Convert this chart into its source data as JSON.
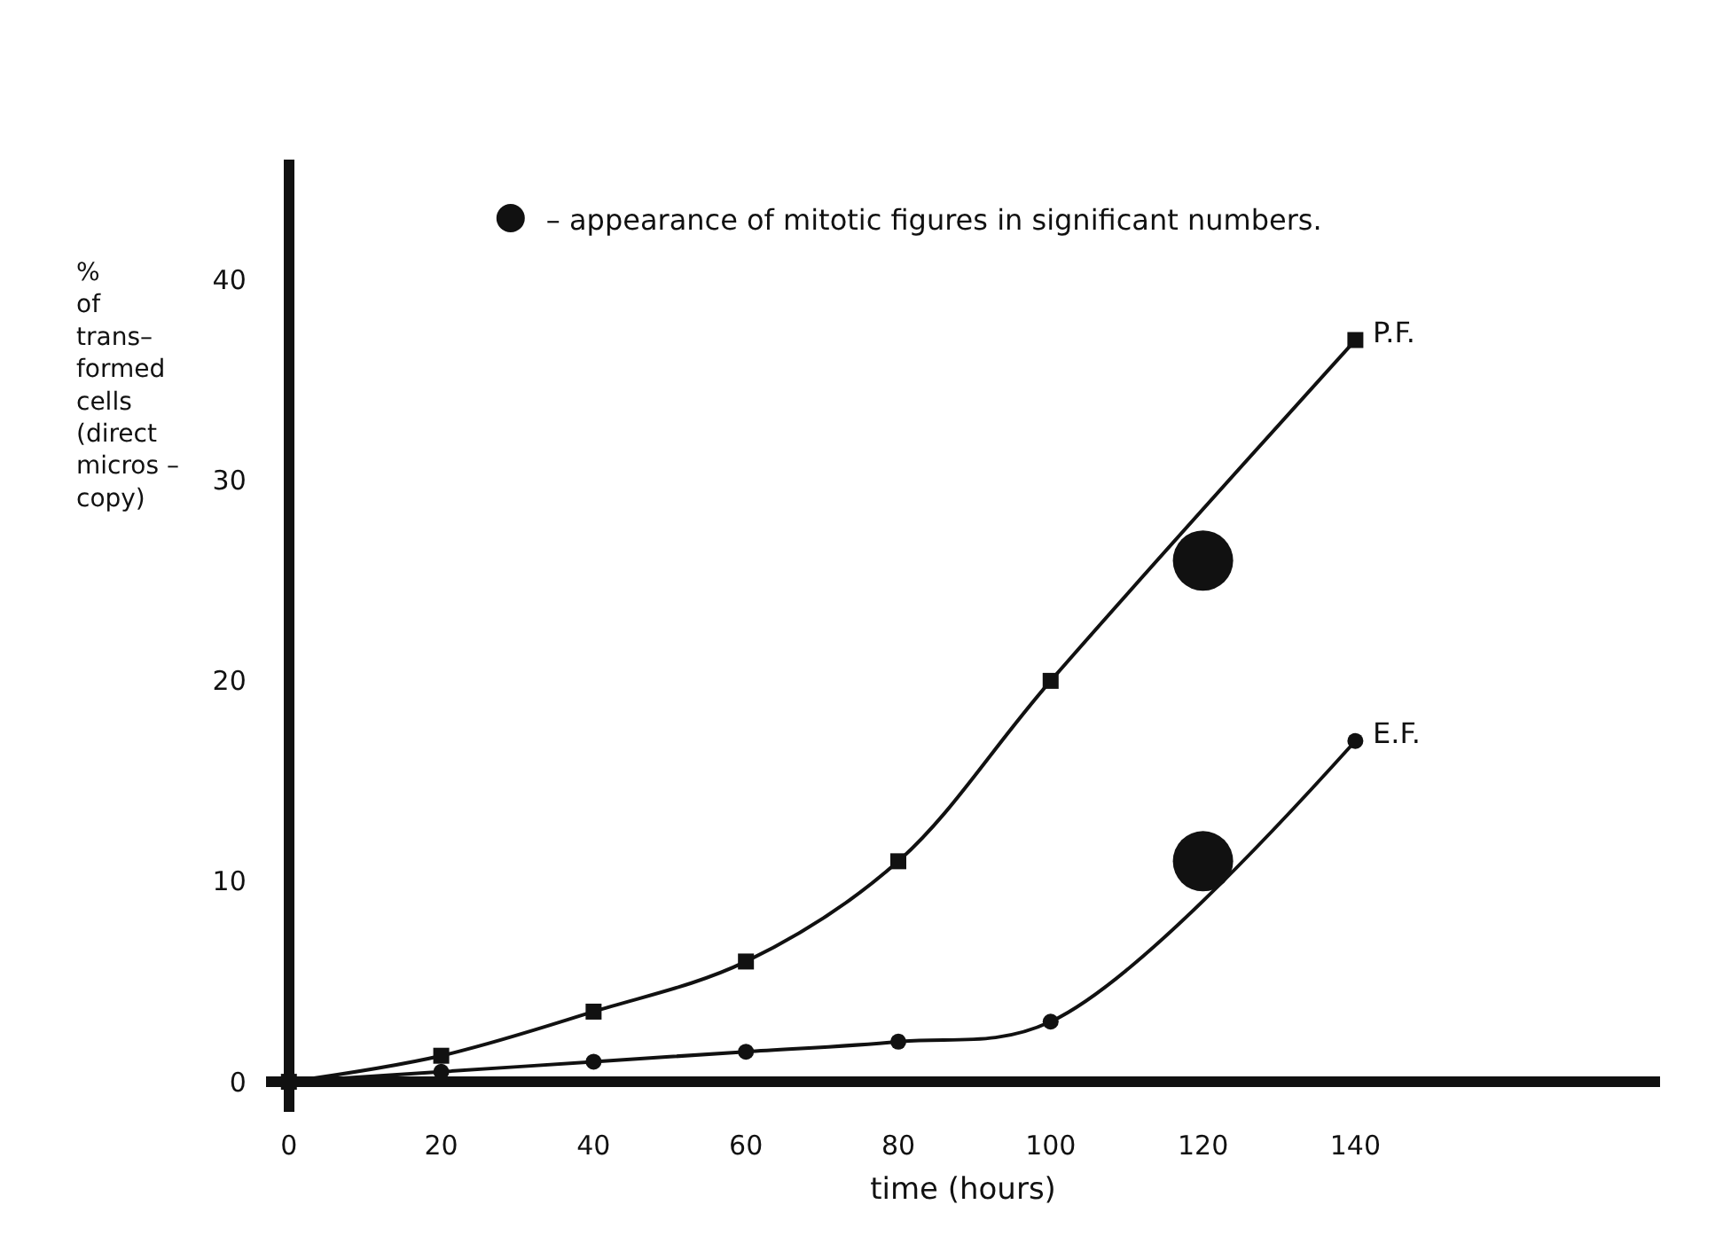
{
  "chart_data": {
    "type": "line",
    "xlabel": "time (hours)",
    "ylabel": "%\nof\ntrans–\nformed\ncells\n(direct\nmicros –\ncopy)",
    "xlim": [
      -3,
      180
    ],
    "ylim": [
      -1.5,
      46
    ],
    "xticks": [
      0,
      20,
      40,
      60,
      80,
      100,
      120,
      140
    ],
    "yticks": [
      0,
      10,
      20,
      30,
      40
    ],
    "grid": false,
    "legend": "top left",
    "series": [
      {
        "name": "P.F.",
        "color": "#111111",
        "type": "line",
        "marker": "square",
        "line_style": "solid",
        "x": [
          0,
          20,
          40,
          60,
          80,
          100,
          140
        ],
        "values": [
          0,
          1.3,
          3.5,
          6,
          11,
          20,
          37
        ]
      },
      {
        "name": "E.F.",
        "color": "#111111",
        "type": "line",
        "marker": "circle",
        "line_style": "solid",
        "x": [
          0,
          20,
          40,
          60,
          80,
          100,
          140
        ],
        "values": [
          0,
          0.5,
          1,
          1.5,
          2,
          3,
          17
        ]
      },
      {
        "name": "– appearance of mitotic figures in significant numbers.",
        "color": "#111111",
        "type": "scatter",
        "marker": "circle",
        "x": [
          120,
          120
        ],
        "values": [
          26,
          11
        ]
      }
    ]
  }
}
